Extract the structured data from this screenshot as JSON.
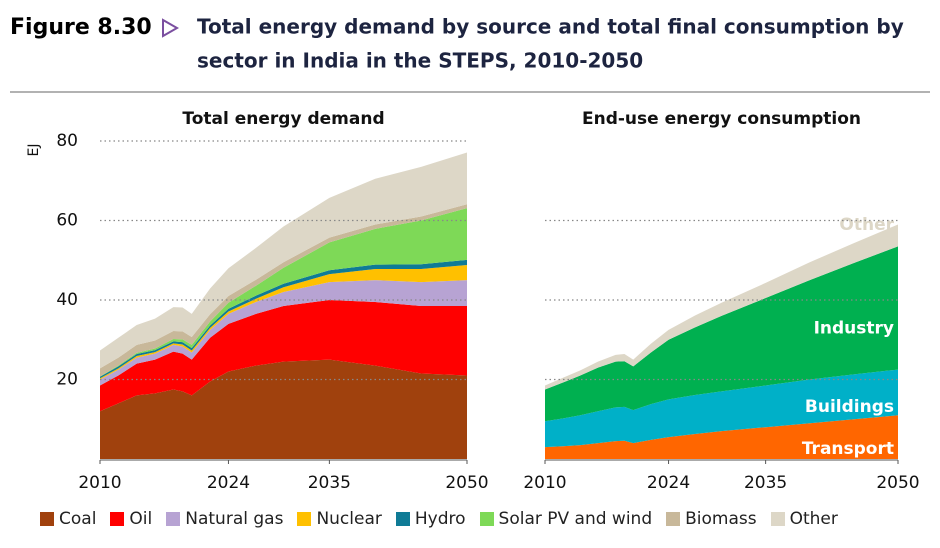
{
  "figure": {
    "label": "Figure 8.30",
    "title_line1": "Total energy demand by source and total final consumption by",
    "title_line2": "sector in India in the STEPS, 2010-2050"
  },
  "chart_data": [
    {
      "type": "area",
      "stacked": true,
      "title": "Total energy demand",
      "ylabel": "EJ",
      "x": [
        2010,
        2012,
        2014,
        2016,
        2018,
        2019,
        2020,
        2022,
        2024,
        2027,
        2030,
        2035,
        2040,
        2045,
        2050
      ],
      "xlim": [
        2010,
        2050
      ],
      "xticks": [
        2010,
        2024,
        2035,
        2050
      ],
      "ylim": [
        0,
        80
      ],
      "yticks": [
        20,
        40,
        60,
        80
      ],
      "ytick_labels": true,
      "grid": true,
      "legend": "bottom",
      "series": [
        {
          "name": "Coal",
          "color": "#a0410d",
          "values": [
            12,
            14,
            16,
            16.5,
            17.5,
            17,
            16,
            19.5,
            22,
            23.5,
            24.5,
            25,
            23.5,
            21.5,
            21
          ]
        },
        {
          "name": "Oil",
          "color": "#ff0000",
          "values": [
            6.5,
            7,
            8,
            8.5,
            9.5,
            9.5,
            9,
            11,
            12,
            13,
            14,
            15,
            16,
            17,
            17.5
          ]
        },
        {
          "name": "Natural gas",
          "color": "#b7a3d3",
          "values": [
            1.5,
            1.5,
            1.5,
            1.5,
            1.7,
            1.8,
            1.8,
            2,
            2.5,
            3,
            3.5,
            4.5,
            5.5,
            6,
            6.5
          ]
        },
        {
          "name": "Nuclear",
          "color": "#ffc000",
          "values": [
            0.3,
            0.3,
            0.4,
            0.4,
            0.4,
            0.5,
            0.5,
            0.5,
            0.6,
            0.8,
            1.2,
            2,
            2.8,
            3.3,
            3.8
          ]
        },
        {
          "name": "Hydro",
          "color": "#0f7b96",
          "values": [
            0.4,
            0.5,
            0.5,
            0.5,
            0.5,
            0.6,
            0.6,
            0.6,
            0.7,
            0.8,
            0.9,
            1,
            1.1,
            1.2,
            1.3
          ]
        },
        {
          "name": "Solar PV and wind",
          "color": "#7ed957",
          "values": [
            0.1,
            0.2,
            0.3,
            0.4,
            0.6,
            0.7,
            0.8,
            1,
            1.5,
            2.5,
            4,
            7,
            9,
            11,
            13
          ]
        },
        {
          "name": "Biomass",
          "color": "#c8b89a",
          "values": [
            2,
            2,
            2,
            2,
            2,
            2,
            2,
            1.8,
            1.7,
            1.5,
            1.4,
            1.2,
            1.1,
            1,
            1
          ]
        },
        {
          "name": "Other",
          "color": "#ddd7c7",
          "values": [
            4.5,
            5,
            5,
            5.5,
            6,
            6,
            5.8,
            6.5,
            7,
            8,
            9,
            10,
            11.5,
            12.5,
            13
          ]
        }
      ]
    },
    {
      "type": "area",
      "stacked": true,
      "title": "End-use energy consumption",
      "x": [
        2010,
        2012,
        2014,
        2016,
        2018,
        2019,
        2020,
        2022,
        2024,
        2027,
        2030,
        2035,
        2040,
        2045,
        2050
      ],
      "xlim": [
        2010,
        2050
      ],
      "xticks": [
        2010,
        2024,
        2035,
        2050
      ],
      "ylim": [
        0,
        80
      ],
      "yticks": [
        20,
        40,
        60
      ],
      "ytick_labels": false,
      "grid": true,
      "series_labels": "inside",
      "series": [
        {
          "name": "Transport",
          "color": "#ff6600",
          "label_color": "#ffffff",
          "values": [
            3,
            3.2,
            3.5,
            4,
            4.5,
            4.6,
            4,
            4.8,
            5.5,
            6.3,
            7,
            8,
            9,
            10,
            11
          ]
        },
        {
          "name": "Buildings",
          "color": "#00b0c8",
          "label_color": "#ffffff",
          "values": [
            6.5,
            7,
            7.5,
            8,
            8.5,
            8.5,
            8.3,
            9,
            9.5,
            9.8,
            10,
            10.5,
            11,
            11.3,
            11.5
          ]
        },
        {
          "name": "Industry",
          "color": "#00b050",
          "label_color": "#ffffff",
          "values": [
            8,
            9,
            10,
            11,
            11.5,
            11.5,
            11,
            13,
            15,
            17,
            19,
            22,
            25,
            28,
            31
          ]
        },
        {
          "name": "Other",
          "color": "#ddd7c7",
          "label_color": "#ddd7c7",
          "values": [
            1,
            1.2,
            1.3,
            1.5,
            1.7,
            1.8,
            1.7,
            2.2,
            2.5,
            3,
            3.3,
            3.8,
            4.5,
            5,
            5.5
          ]
        }
      ]
    }
  ]
}
